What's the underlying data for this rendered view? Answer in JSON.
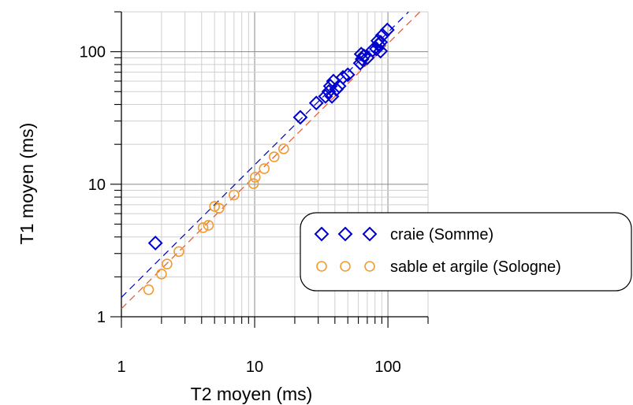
{
  "chart_data": {
    "type": "scatter",
    "xscale": "log",
    "yscale": "log",
    "xlim": [
      1,
      200
    ],
    "ylim": [
      1,
      200
    ],
    "xlabel": "T2 moyen (ms)",
    "ylabel": "T1 moyen (ms)",
    "xticks": [
      {
        "value": 1,
        "label": "1"
      },
      {
        "value": 10,
        "label": "10"
      },
      {
        "value": 100,
        "label": "100"
      }
    ],
    "yticks": [
      {
        "value": 1,
        "label": "1"
      },
      {
        "value": 10,
        "label": "10"
      },
      {
        "value": 100,
        "label": "100"
      }
    ],
    "grid": true,
    "legend_position": "lower-right",
    "series": [
      {
        "name": "craie (Somme)",
        "marker": "diamond",
        "color": "#0000cc",
        "points": [
          [
            1.8,
            3.6
          ],
          [
            22,
            32
          ],
          [
            29,
            41
          ],
          [
            34,
            46
          ],
          [
            36,
            50
          ],
          [
            38,
            46
          ],
          [
            37,
            55
          ],
          [
            39,
            60
          ],
          [
            41,
            52
          ],
          [
            43,
            55
          ],
          [
            46,
            64
          ],
          [
            50,
            67
          ],
          [
            62,
            82
          ],
          [
            64,
            88
          ],
          [
            63,
            96
          ],
          [
            66,
            93
          ],
          [
            70,
            90
          ],
          [
            77,
            103
          ],
          [
            82,
            105
          ],
          [
            85,
            113
          ],
          [
            84,
            121
          ],
          [
            88,
            118
          ],
          [
            91,
            133
          ],
          [
            99,
            146
          ],
          [
            88,
            101
          ]
        ]
      },
      {
        "name": "sable et argile (Sologne)",
        "marker": "circle",
        "color": "#f29b30",
        "points": [
          [
            1.6,
            1.6
          ],
          [
            2.0,
            2.1
          ],
          [
            2.2,
            2.5
          ],
          [
            2.7,
            3.1
          ],
          [
            4.1,
            4.7
          ],
          [
            4.5,
            4.9
          ],
          [
            5.0,
            6.8
          ],
          [
            5.4,
            6.6
          ],
          [
            7.0,
            8.3
          ],
          [
            9.8,
            10.1
          ],
          [
            10.1,
            11.3
          ],
          [
            11.8,
            13.1
          ],
          [
            14.0,
            16.1
          ],
          [
            16.5,
            18.5
          ]
        ]
      }
    ],
    "fit_lines": [
      {
        "color": "#0000cc",
        "dash": true,
        "slope": 1.0,
        "intercept": 1.4
      },
      {
        "color": "#e8542f",
        "dash": true,
        "slope": 1.0,
        "intercept": 1.15
      }
    ]
  }
}
